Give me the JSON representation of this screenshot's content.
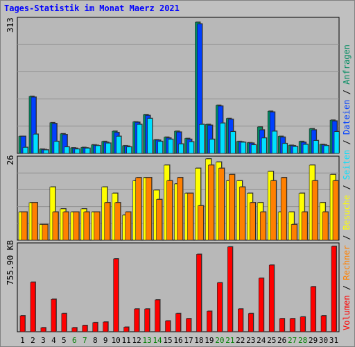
{
  "title": "Tages-Statistik im Monat Maerz 2021",
  "chart_data": [
    {
      "type": "bar",
      "panel": "top",
      "ymax_label": "313",
      "ylim": [
        0,
        313
      ],
      "categories": [
        "1",
        "2",
        "3",
        "4",
        "5",
        "6",
        "7",
        "8",
        "9",
        "10",
        "11",
        "12",
        "13",
        "14",
        "15",
        "16",
        "17",
        "18",
        "19",
        "20",
        "21",
        "22",
        "23",
        "24",
        "25",
        "26",
        "27",
        "28",
        "29",
        "30",
        "31"
      ],
      "series": [
        {
          "name": "Anfragen",
          "color": "#008c60",
          "values": [
            40,
            134,
            10,
            72,
            46,
            13,
            14,
            20,
            28,
            52,
            18,
            74,
            91,
            32,
            38,
            52,
            35,
            308,
            68,
            113,
            82,
            28,
            25,
            62,
            99,
            40,
            19,
            28,
            58,
            21,
            78
          ]
        },
        {
          "name": "Dateien",
          "color": "#0040ff",
          "values": [
            40,
            132,
            9,
            70,
            44,
            12,
            13,
            19,
            26,
            49,
            17,
            73,
            89,
            31,
            36,
            50,
            33,
            304,
            66,
            111,
            80,
            27,
            24,
            55,
            97,
            38,
            18,
            26,
            55,
            20,
            76
          ]
        },
        {
          "name": "Seiten",
          "color": "#00e0ff",
          "values": [
            14,
            45,
            8,
            28,
            15,
            10,
            12,
            18,
            24,
            40,
            15,
            68,
            82,
            28,
            33,
            22,
            27,
            68,
            33,
            71,
            51,
            26,
            20,
            36,
            52,
            23,
            16,
            21,
            30,
            18,
            51
          ]
        }
      ]
    },
    {
      "type": "bar",
      "panel": "middle",
      "ymax_label": "26",
      "ylim": [
        0,
        26
      ],
      "categories": [
        "1",
        "2",
        "3",
        "4",
        "5",
        "6",
        "7",
        "8",
        "9",
        "10",
        "11",
        "12",
        "13",
        "14",
        "15",
        "16",
        "17",
        "18",
        "19",
        "20",
        "21",
        "22",
        "23",
        "24",
        "25",
        "26",
        "27",
        "28",
        "29",
        "30",
        "31"
      ],
      "series": [
        {
          "name": "Besuche",
          "color": "#ffff00",
          "values": [
            9,
            12,
            5,
            17,
            10,
            9,
            10,
            9,
            17,
            15,
            8,
            19,
            20,
            16,
            24,
            18,
            15,
            23,
            26,
            25,
            19,
            19,
            15,
            12,
            22,
            9,
            9,
            15,
            24,
            12,
            21
          ]
        },
        {
          "name": "Rechner",
          "color": "#ff8000",
          "values": [
            9,
            12,
            5,
            9,
            9,
            9,
            9,
            9,
            12,
            12,
            9,
            20,
            20,
            13,
            19,
            20,
            15,
            11,
            24,
            23,
            21,
            17,
            12,
            9,
            19,
            20,
            5,
            9,
            19,
            9,
            19
          ]
        }
      ]
    },
    {
      "type": "bar",
      "panel": "bottom",
      "ymax_label": "755.90 KB",
      "ylim": [
        0,
        755.9
      ],
      "categories": [
        "1",
        "2",
        "3",
        "4",
        "5",
        "6",
        "7",
        "8",
        "9",
        "10",
        "11",
        "12",
        "13",
        "14",
        "15",
        "16",
        "17",
        "18",
        "19",
        "20",
        "21",
        "22",
        "23",
        "24",
        "25",
        "26",
        "27",
        "28",
        "29",
        "30",
        "31"
      ],
      "series": [
        {
          "name": "Volumen",
          "color": "#ff0000",
          "values": [
            140,
            435,
            35,
            285,
            160,
            35,
            55,
            80,
            85,
            640,
            40,
            200,
            200,
            280,
            95,
            160,
            115,
            680,
            180,
            430,
            745,
            200,
            160,
            470,
            585,
            115,
            115,
            130,
            395,
            140,
            750
          ]
        }
      ]
    }
  ],
  "x_labels": [
    {
      "text": "1",
      "color": "#000000"
    },
    {
      "text": "2",
      "color": "#000000"
    },
    {
      "text": "3",
      "color": "#000000"
    },
    {
      "text": "4",
      "color": "#000000"
    },
    {
      "text": "5",
      "color": "#000000"
    },
    {
      "text": "6",
      "color": "#008000"
    },
    {
      "text": "7",
      "color": "#008000"
    },
    {
      "text": "8",
      "color": "#000000"
    },
    {
      "text": "9",
      "color": "#000000"
    },
    {
      "text": "10",
      "color": "#000000"
    },
    {
      "text": "11",
      "color": "#000000"
    },
    {
      "text": "12",
      "color": "#000000"
    },
    {
      "text": "13",
      "color": "#008000"
    },
    {
      "text": "14",
      "color": "#008000"
    },
    {
      "text": "15",
      "color": "#000000"
    },
    {
      "text": "16",
      "color": "#000000"
    },
    {
      "text": "17",
      "color": "#000000"
    },
    {
      "text": "18",
      "color": "#000000"
    },
    {
      "text": "19",
      "color": "#000000"
    },
    {
      "text": "20",
      "color": "#008000"
    },
    {
      "text": "21",
      "color": "#008000"
    },
    {
      "text": "22",
      "color": "#000000"
    },
    {
      "text": "23",
      "color": "#000000"
    },
    {
      "text": "24",
      "color": "#000000"
    },
    {
      "text": "25",
      "color": "#000000"
    },
    {
      "text": "26",
      "color": "#000000"
    },
    {
      "text": "27",
      "color": "#008000"
    },
    {
      "text": "28",
      "color": "#008000"
    },
    {
      "text": "29",
      "color": "#000000"
    },
    {
      "text": "30",
      "color": "#000000"
    },
    {
      "text": "31",
      "color": "#000000"
    }
  ],
  "side_legend": {
    "top": [
      {
        "text": "Anfragen",
        "color": "#008c60"
      },
      {
        "text": " / ",
        "color": "#000000"
      },
      {
        "text": "Dateien",
        "color": "#0040ff"
      },
      {
        "text": " / ",
        "color": "#000000"
      },
      {
        "text": "Seiten",
        "color": "#00e0ff"
      },
      {
        "text": " / ",
        "color": "#000000"
      },
      {
        "text": "Besuche",
        "color": "#ffff00"
      },
      {
        "text": " / ",
        "color": "#000000"
      },
      {
        "text": "Rechner",
        "color": "#ff8000"
      },
      {
        "text": " / ",
        "color": "#000000"
      },
      {
        "text": "Volumen",
        "color": "#ff0000"
      }
    ]
  }
}
